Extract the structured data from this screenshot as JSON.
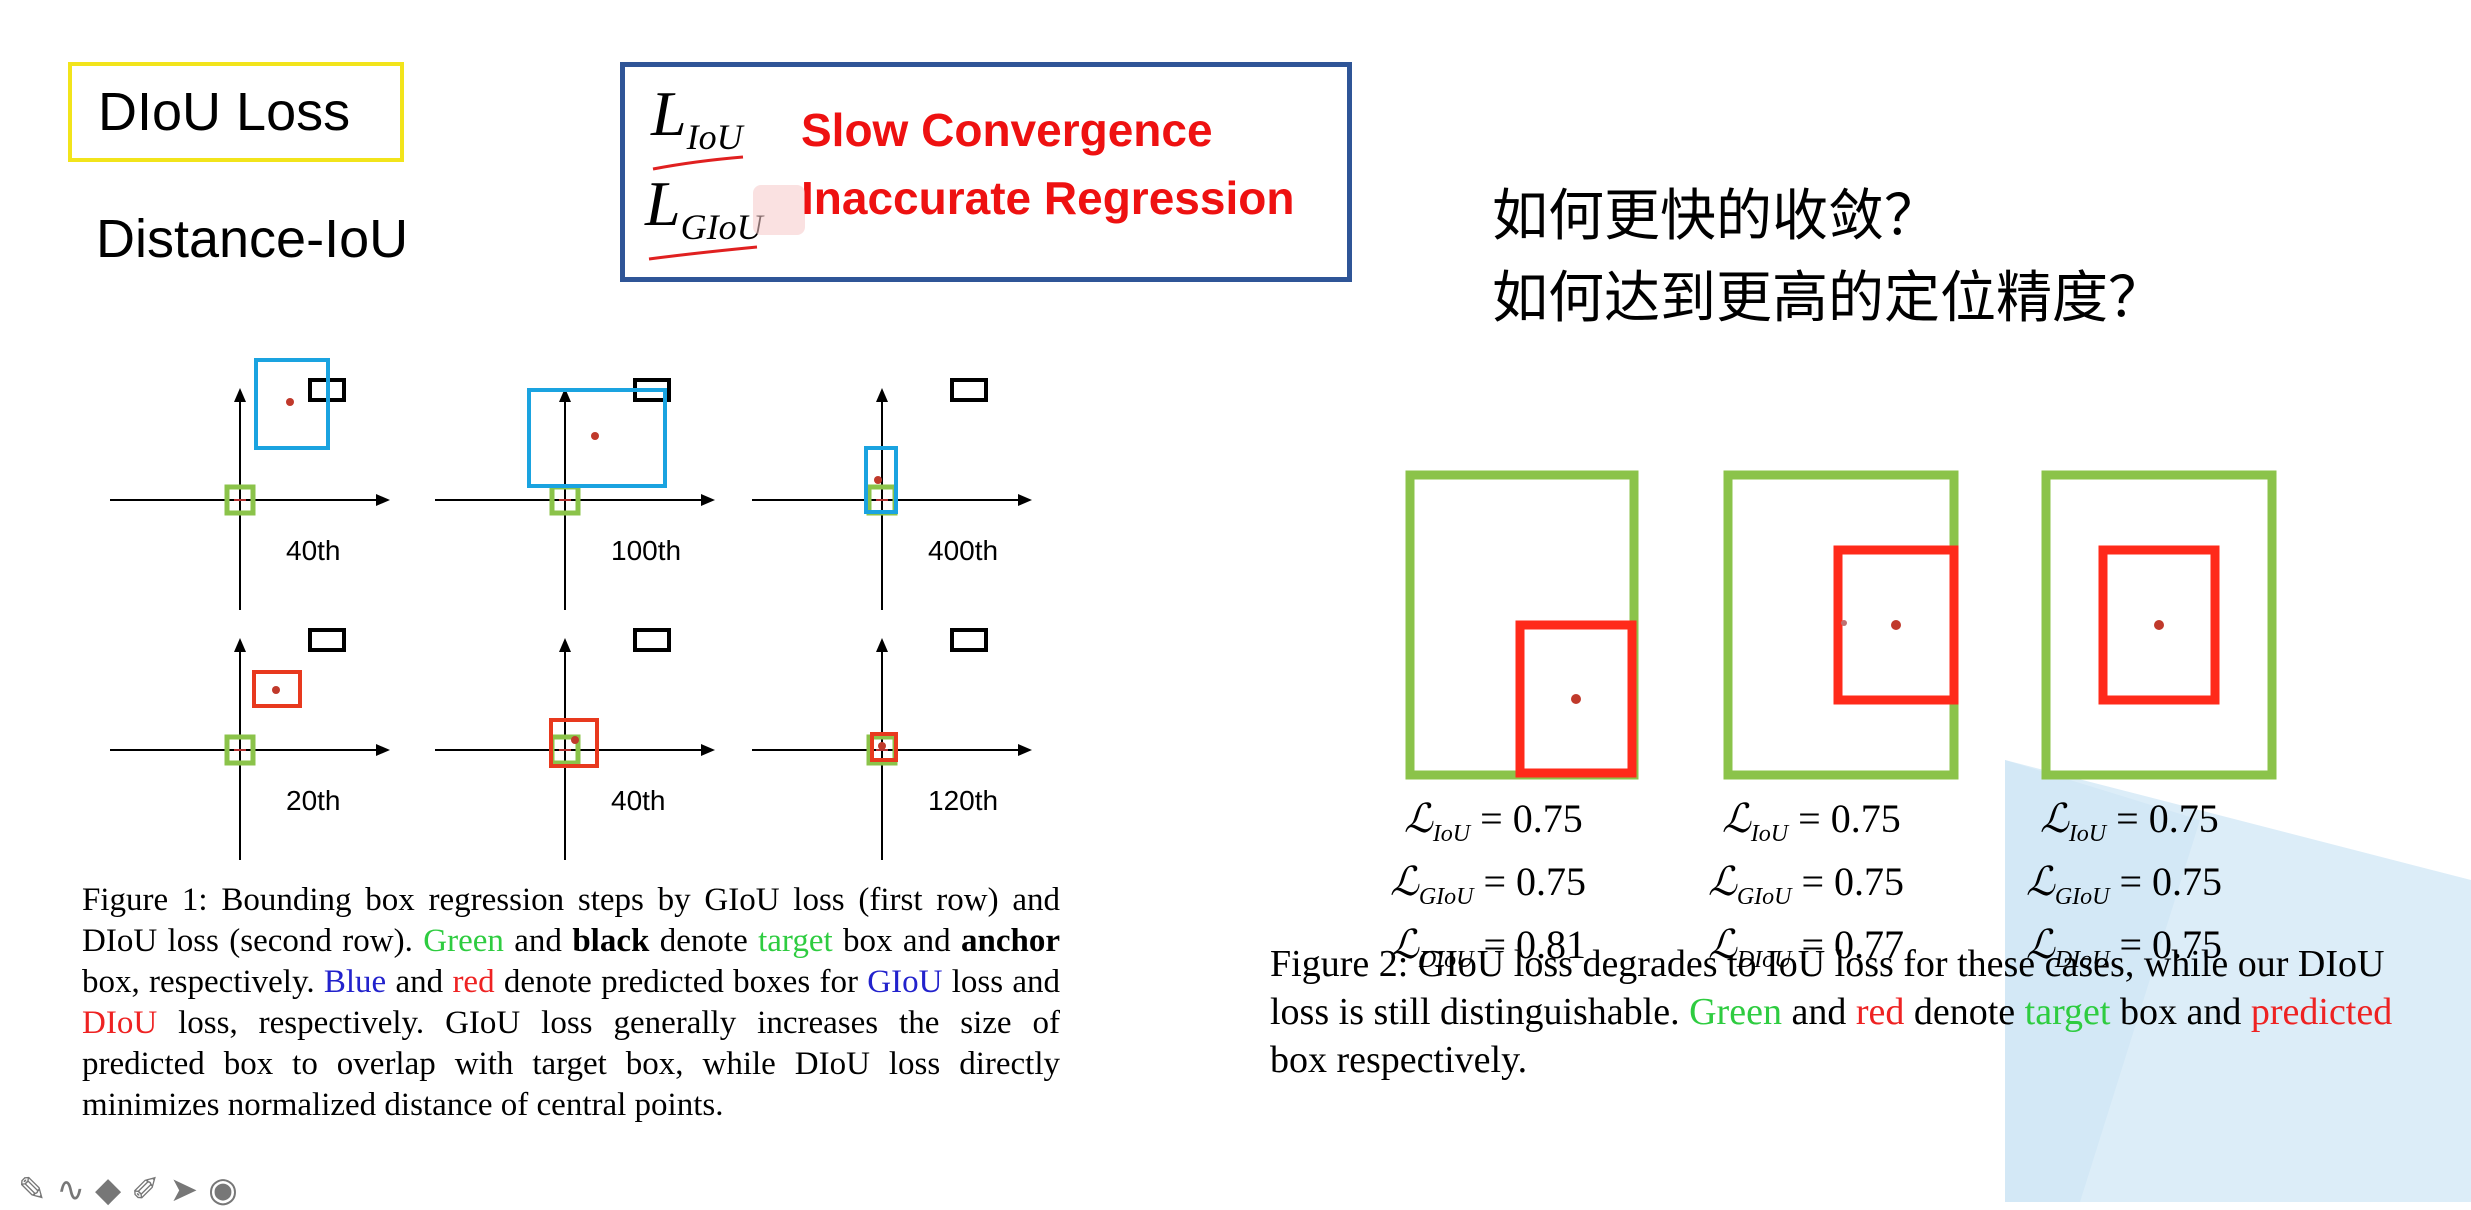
{
  "slide": {
    "title": "DIoU Loss",
    "subtitle": "Distance-IoU"
  },
  "loss_box": {
    "items": [
      {
        "symbol_main": "L",
        "symbol_sub": "IoU",
        "label": "Slow Convergence"
      },
      {
        "symbol_main": "L",
        "symbol_sub": "GIoU",
        "label": "Inaccurate Regression"
      }
    ]
  },
  "questions": [
    "如何更快的收敛？",
    "如何达到更高的定位精度？"
  ],
  "figure1": {
    "panels": [
      {
        "label": "40th",
        "pred": "blue"
      },
      {
        "label": "100th",
        "pred": "blue"
      },
      {
        "label": "400th",
        "pred": "blue"
      },
      {
        "label": "20th",
        "pred": "red"
      },
      {
        "label": "40th",
        "pred": "red"
      },
      {
        "label": "120th",
        "pred": "red"
      }
    ],
    "caption": {
      "p1": "Figure 1: Bounding box regression steps by GIoU loss (first row) and DIoU loss (second row). ",
      "green_word": "Green",
      "p2": " and ",
      "black_word": "black",
      "p3": " denote ",
      "target_word": "target",
      "p4": " box and ",
      "anchor_word": "anchor",
      "p5": " box, respectively. ",
      "blue_word": "Blue",
      "p6": " and ",
      "red_word": "red",
      "p7": " denote predicted boxes for ",
      "giou_word": "GIoU",
      "p8": " loss and ",
      "diou_word": "DIoU",
      "p9": " loss, respectively. GIoU loss generally increases the size of predicted box to overlap with target box, while DIoU loss directly minimizes normalized distance of central points."
    }
  },
  "figure2": {
    "cases": [
      {
        "iou": "0.75",
        "giou": "0.75",
        "diou": "0.81"
      },
      {
        "iou": "0.75",
        "giou": "0.75",
        "diou": "0.77"
      },
      {
        "iou": "0.75",
        "giou": "0.75",
        "diou": "0.75"
      }
    ],
    "symbols": {
      "L": "ℒ",
      "iou_sub": "IoU",
      "giou_sub": "GIoU",
      "diou_sub": "DIoU",
      "eq": " = "
    },
    "caption": {
      "p1": "Figure 2: GIoU loss degrades to IoU loss for these cases, while our DIoU loss is still distinguishable. ",
      "green_word": "Green",
      "p2": " and ",
      "red_word": "red",
      "p3": " denote ",
      "target_word": "target",
      "p4": " box and ",
      "predicted_word": "predicted",
      "p5": " box respectively."
    }
  },
  "colors": {
    "target_green": "#8bc34a",
    "pred_red": "#ff2a1a",
    "pred_blue": "#1aa3e0",
    "anchor_black": "#000000",
    "title_box": "#f2e41b",
    "loss_box": "#2f5597"
  },
  "toolbar_icons": [
    "pen-icon",
    "curve-icon",
    "stamp-icon",
    "marker-icon",
    "pointer-icon",
    "record-icon"
  ]
}
